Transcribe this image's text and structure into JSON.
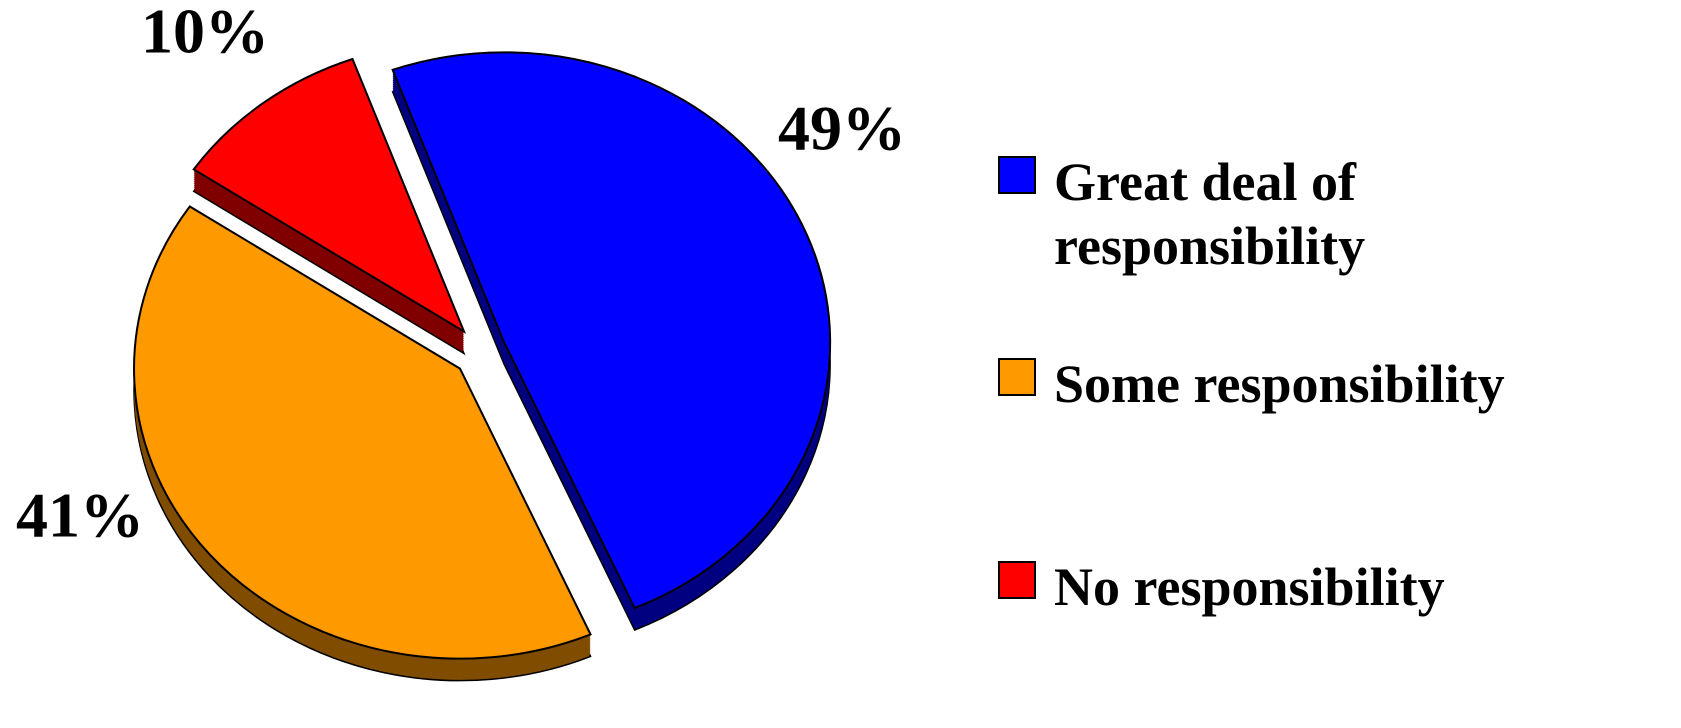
{
  "chart_data": {
    "type": "pie",
    "categories": [
      "Great deal of responsibility",
      "Some responsibility",
      "No responsibility"
    ],
    "values": [
      49,
      41,
      10
    ],
    "value_labels": [
      "49%",
      "41%",
      "10%"
    ],
    "colors": [
      "#0000ff",
      "#ff9900",
      "#ff0000"
    ],
    "exploded": true,
    "three_d": true,
    "legend": "right"
  }
}
